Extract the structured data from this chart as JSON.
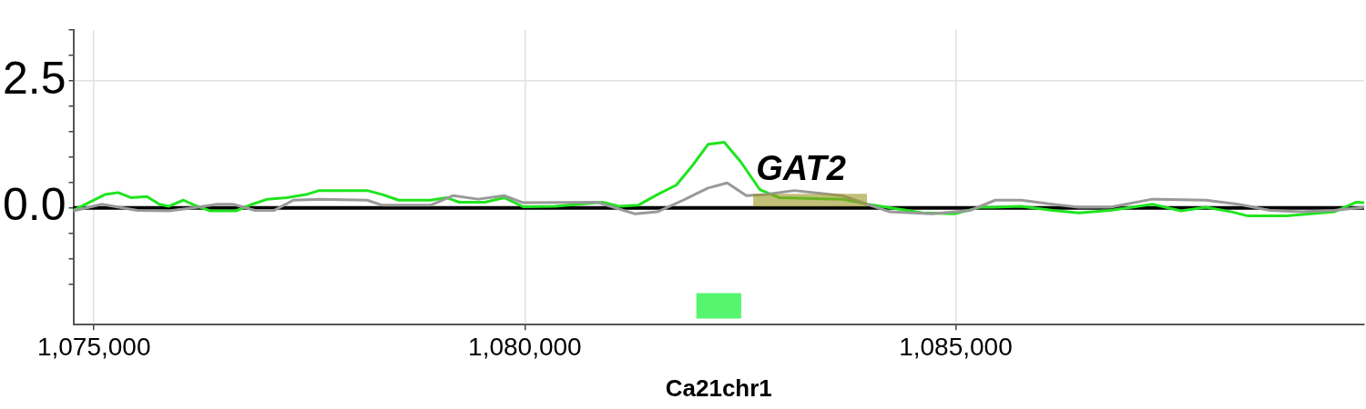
{
  "chart_data": {
    "type": "line",
    "xlabel": "Ca21chr1",
    "xlim": [
      1074760,
      1089740
    ],
    "ylim": [
      -2.3,
      3.5
    ],
    "xticks": [
      {
        "value": 1075000,
        "label": "1,075,000"
      },
      {
        "value": 1080000,
        "label": "1,080,000"
      },
      {
        "value": 1085000,
        "label": "1,085,000"
      }
    ],
    "yticks": [
      {
        "value": -1.5,
        "label": null
      },
      {
        "value": -1,
        "label": null
      },
      {
        "value": -0.5,
        "label": null
      },
      {
        "value": 0,
        "label": "0.0"
      },
      {
        "value": 0.5,
        "label": null
      },
      {
        "value": 1,
        "label": null
      },
      {
        "value": 1.5,
        "label": null
      },
      {
        "value": 2,
        "label": null
      },
      {
        "value": 2.5,
        "label": "2.5"
      },
      {
        "value": 3,
        "label": null
      },
      {
        "value": 3.5,
        "label": null
      }
    ],
    "grid": true,
    "legend": false,
    "marker": "none",
    "line_style": "solid",
    "ref_lines": [
      {
        "axis": "y",
        "value": 0,
        "color": "#000000"
      }
    ],
    "series": [
      {
        "color": "#1fe41f",
        "x": [
          1074760,
          1075126,
          1075281,
          1075426,
          1075614,
          1075759,
          1075870,
          1076037,
          1076170,
          1076348,
          1076648,
          1076837,
          1077014,
          1077237,
          1077459,
          1077614,
          1078170,
          1078348,
          1078537,
          1078903,
          1079092,
          1079237,
          1079537,
          1079759,
          1079981,
          1080348,
          1080903,
          1081092,
          1081314,
          1081537,
          1081759,
          1081948,
          1082126,
          1082314,
          1082503,
          1082726,
          1082948,
          1083681,
          1083981,
          1084203,
          1084614,
          1084981,
          1085281,
          1085426,
          1085759,
          1086126,
          1086426,
          1086792,
          1087281,
          1087614,
          1087903,
          1088203,
          1088392,
          1088837,
          1089392,
          1089648,
          1089740
        ],
        "values": [
          -0.05,
          0.26,
          0.3,
          0.2,
          0.22,
          0.07,
          0.03,
          0.15,
          0.05,
          -0.06,
          -0.06,
          0.07,
          0.17,
          0.2,
          0.26,
          0.34,
          0.34,
          0.26,
          0.15,
          0.15,
          0.2,
          0.11,
          0.11,
          0.2,
          0.02,
          0.03,
          0.11,
          0.03,
          0.05,
          0.26,
          0.45,
          0.84,
          1.25,
          1.29,
          0.91,
          0.36,
          0.2,
          0.17,
          0.07,
          0.01,
          -0.1,
          -0.12,
          0.01,
          0.01,
          0.03,
          -0.05,
          -0.1,
          -0.05,
          0.07,
          -0.06,
          0.01,
          -0.08,
          -0.16,
          -0.16,
          -0.08,
          0.11,
          0.1
        ]
      },
      {
        "color": "#999999",
        "x": [
          1074760,
          1075092,
          1075503,
          1075870,
          1076203,
          1076426,
          1076614,
          1076870,
          1077092,
          1077314,
          1077614,
          1078170,
          1078348,
          1078903,
          1079170,
          1079459,
          1079759,
          1079981,
          1080837,
          1081281,
          1081537,
          1081837,
          1082126,
          1082348,
          1082570,
          1082792,
          1083126,
          1083681,
          1083903,
          1084237,
          1084726,
          1085170,
          1085459,
          1085759,
          1086126,
          1086426,
          1086792,
          1087281,
          1087903,
          1088281,
          1088648,
          1089014,
          1089392,
          1089740
        ],
        "values": [
          -0.06,
          0.07,
          -0.05,
          -0.06,
          0.01,
          0.07,
          0.07,
          -0.05,
          -0.05,
          0.15,
          0.17,
          0.15,
          0.05,
          0.05,
          0.24,
          0.17,
          0.24,
          0.1,
          0.11,
          -0.12,
          -0.08,
          0.15,
          0.39,
          0.49,
          0.24,
          0.26,
          0.34,
          0.24,
          0.11,
          -0.08,
          -0.12,
          -0.05,
          0.15,
          0.15,
          0.07,
          0.01,
          0.01,
          0.17,
          0.15,
          0.07,
          -0.05,
          -0.08,
          -0.05,
          0.01
        ]
      },
      {
        "name": "GAT2",
        "color": "#9a9420",
        "x": [
          1082650,
          1083970
        ],
        "values": [
          0.15,
          0.15
        ]
      },
      {
        "color": "#55f56f",
        "x": [
          1081990,
          1082510
        ],
        "values": [
          -1.93,
          -1.93
        ]
      }
    ]
  }
}
